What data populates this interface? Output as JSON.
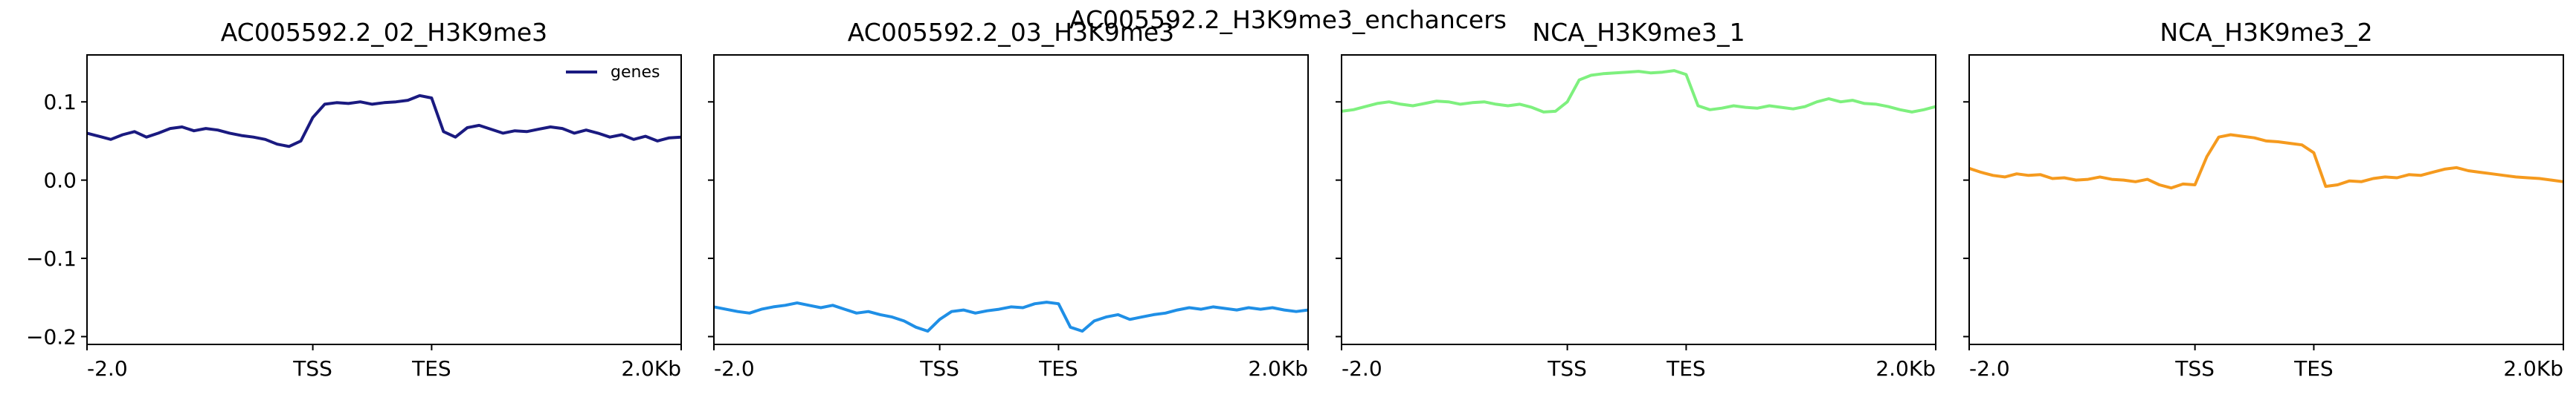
{
  "chart_data": {
    "type": "line",
    "suptitle": "AC005592.2_H3K9me3_enchancers",
    "ylim": [
      -0.21,
      0.16
    ],
    "yticks": [
      0.1,
      0.0,
      -0.1,
      -0.2
    ],
    "ytick_labels": [
      "0.1",
      "0.0",
      "−0.1",
      "−0.2"
    ],
    "xticks": [
      0,
      95,
      145,
      250
    ],
    "xtick_labels": [
      "-2.0",
      "TSS",
      "TES",
      "2.0Kb"
    ],
    "xlim": [
      0,
      250
    ],
    "legend": {
      "label": "genes",
      "placement": "top-right",
      "panel": 0
    },
    "grid": false,
    "panels": [
      {
        "title": "AC005592.2_02_H3K9me3",
        "color": "#1a1a80",
        "series": [
          {
            "name": "genes",
            "x": [
              0,
              5,
              10,
              15,
              20,
              25,
              30,
              35,
              40,
              45,
              50,
              55,
              60,
              65,
              70,
              75,
              80,
              85,
              90,
              95,
              100,
              105,
              110,
              115,
              120,
              125,
              130,
              135,
              140,
              145,
              150,
              155,
              160,
              165,
              170,
              175,
              180,
              185,
              190,
              195,
              200,
              205,
              210,
              215,
              220,
              225,
              230,
              235,
              240,
              245,
              250
            ],
            "values": [
              0.06,
              0.056,
              0.052,
              0.058,
              0.062,
              0.055,
              0.06,
              0.066,
              0.068,
              0.063,
              0.066,
              0.064,
              0.06,
              0.057,
              0.055,
              0.052,
              0.046,
              0.043,
              0.05,
              0.08,
              0.097,
              0.099,
              0.098,
              0.1,
              0.097,
              0.099,
              0.1,
              0.102,
              0.108,
              0.105,
              0.062,
              0.055,
              0.067,
              0.07,
              0.065,
              0.06,
              0.063,
              0.062,
              0.065,
              0.068,
              0.066,
              0.06,
              0.064,
              0.06,
              0.055,
              0.058,
              0.052,
              0.056,
              0.05,
              0.054,
              0.055
            ]
          }
        ]
      },
      {
        "title": "AC005592.2_03_H3K9me3",
        "color": "#1f8fe6",
        "series": [
          {
            "x": [
              0,
              5,
              10,
              15,
              20,
              25,
              30,
              35,
              40,
              45,
              50,
              55,
              60,
              65,
              70,
              75,
              80,
              85,
              90,
              95,
              100,
              105,
              110,
              115,
              120,
              125,
              130,
              135,
              140,
              145,
              150,
              155,
              160,
              165,
              170,
              175,
              180,
              185,
              190,
              195,
              200,
              205,
              210,
              215,
              220,
              225,
              230,
              235,
              240,
              245,
              250
            ],
            "values": [
              -0.162,
              -0.165,
              -0.168,
              -0.17,
              -0.165,
              -0.162,
              -0.16,
              -0.157,
              -0.16,
              -0.163,
              -0.16,
              -0.165,
              -0.17,
              -0.168,
              -0.172,
              -0.175,
              -0.18,
              -0.188,
              -0.193,
              -0.178,
              -0.168,
              -0.166,
              -0.17,
              -0.167,
              -0.165,
              -0.162,
              -0.163,
              -0.158,
              -0.156,
              -0.158,
              -0.188,
              -0.193,
              -0.18,
              -0.175,
              -0.172,
              -0.178,
              -0.175,
              -0.172,
              -0.17,
              -0.166,
              -0.163,
              -0.165,
              -0.162,
              -0.164,
              -0.166,
              -0.163,
              -0.165,
              -0.163,
              -0.166,
              -0.168,
              -0.166
            ]
          }
        ]
      },
      {
        "title": "NCA_H3K9me3_1",
        "color": "#7ef07e",
        "series": [
          {
            "x": [
              0,
              5,
              10,
              15,
              20,
              25,
              30,
              35,
              40,
              45,
              50,
              55,
              60,
              65,
              70,
              75,
              80,
              85,
              90,
              95,
              100,
              105,
              110,
              115,
              120,
              125,
              130,
              135,
              140,
              145,
              150,
              155,
              160,
              165,
              170,
              175,
              180,
              185,
              190,
              195,
              200,
              205,
              210,
              215,
              220,
              225,
              230,
              235,
              240,
              245,
              250
            ],
            "values": [
              0.088,
              0.09,
              0.094,
              0.098,
              0.1,
              0.097,
              0.095,
              0.098,
              0.101,
              0.1,
              0.097,
              0.099,
              0.1,
              0.097,
              0.095,
              0.097,
              0.093,
              0.087,
              0.088,
              0.1,
              0.128,
              0.134,
              0.136,
              0.137,
              0.138,
              0.139,
              0.137,
              0.138,
              0.14,
              0.135,
              0.095,
              0.09,
              0.092,
              0.095,
              0.093,
              0.092,
              0.095,
              0.093,
              0.091,
              0.094,
              0.1,
              0.104,
              0.1,
              0.102,
              0.098,
              0.097,
              0.094,
              0.09,
              0.087,
              0.09,
              0.094
            ]
          }
        ]
      },
      {
        "title": "NCA_H3K9me3_2",
        "color": "#f59a1e",
        "series": [
          {
            "x": [
              0,
              5,
              10,
              15,
              20,
              25,
              30,
              35,
              40,
              45,
              50,
              55,
              60,
              65,
              70,
              75,
              80,
              85,
              90,
              95,
              100,
              105,
              110,
              115,
              120,
              125,
              130,
              135,
              140,
              145,
              150,
              155,
              160,
              165,
              170,
              175,
              180,
              185,
              190,
              195,
              200,
              205,
              210,
              215,
              220,
              225,
              230,
              235,
              240,
              245,
              250
            ],
            "values": [
              0.015,
              0.01,
              0.006,
              0.004,
              0.008,
              0.006,
              0.007,
              0.002,
              0.003,
              0.0,
              0.001,
              0.004,
              0.001,
              0.0,
              -0.002,
              0.001,
              -0.006,
              -0.01,
              -0.005,
              -0.006,
              0.03,
              0.055,
              0.058,
              0.056,
              0.054,
              0.05,
              0.049,
              0.047,
              0.045,
              0.035,
              -0.008,
              -0.006,
              -0.001,
              -0.002,
              0.002,
              0.004,
              0.003,
              0.007,
              0.006,
              0.01,
              0.014,
              0.016,
              0.012,
              0.01,
              0.008,
              0.006,
              0.004,
              0.003,
              0.002,
              0.0,
              -0.002
            ]
          }
        ]
      }
    ]
  }
}
